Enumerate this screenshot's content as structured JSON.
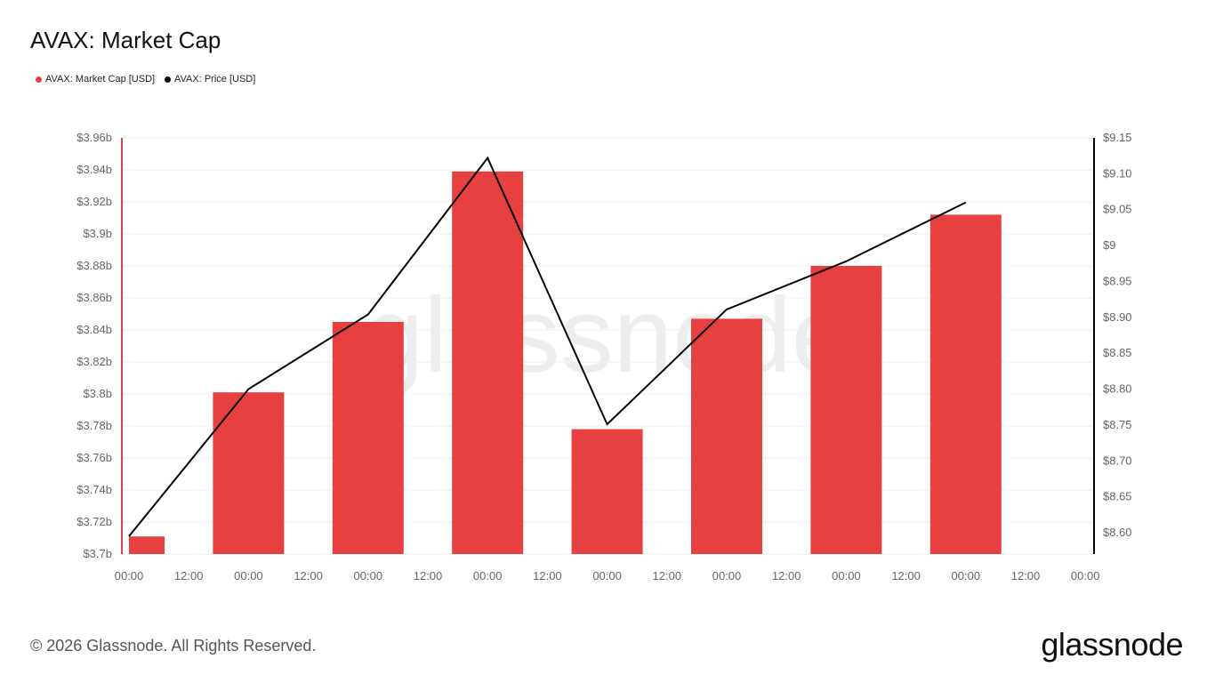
{
  "chart_data": {
    "type": "bar",
    "title": "AVAX: Market Cap",
    "x_tick_labels": [
      "00:00",
      "12:00",
      "00:00",
      "12:00",
      "00:00",
      "12:00",
      "00:00",
      "12:00",
      "00:00",
      "12:00",
      "00:00",
      "12:00",
      "00:00",
      "12:00",
      "00:00",
      "12:00",
      "00:00"
    ],
    "series": [
      {
        "name": "AVAX: Market Cap [USD]",
        "type": "bar",
        "axis": "left",
        "color": "#e64040",
        "x_index": [
          0,
          2,
          4,
          6,
          8,
          10,
          12,
          14
        ],
        "values": [
          3.711,
          3.801,
          3.845,
          3.939,
          3.778,
          3.847,
          3.88,
          3.912
        ]
      },
      {
        "name": "AVAX: Price [USD]",
        "type": "line",
        "axis": "right",
        "color": "#000000",
        "x_index": [
          0,
          2,
          4,
          6,
          8,
          10,
          12,
          14
        ],
        "values": [
          8.595,
          8.8,
          8.904,
          9.122,
          8.751,
          8.911,
          8.978,
          9.06
        ]
      }
    ],
    "y_left": {
      "unit": "b",
      "ylim": [
        3.7,
        3.96
      ],
      "tick_labels": [
        "$3.7b",
        "$3.72b",
        "$3.74b",
        "$3.76b",
        "$3.78b",
        "$3.8b",
        "$3.82b",
        "$3.84b",
        "$3.86b",
        "$3.88b",
        "$3.9b",
        "$3.92b",
        "$3.94b",
        "$3.96b"
      ]
    },
    "y_right": {
      "ylim": [
        8.56,
        9.15
      ],
      "ticks": [
        8.6,
        8.65,
        8.7,
        8.75,
        8.8,
        8.85,
        8.9,
        8.95,
        9.0,
        9.05,
        9.1,
        9.15
      ],
      "tick_labels": [
        "$8.60",
        "$8.65",
        "$8.70",
        "$8.75",
        "$8.80",
        "$8.85",
        "$8.90",
        "$8.95",
        "$9",
        "$9.05",
        "$9.10",
        "$9.15"
      ]
    },
    "grid": true,
    "legend_placement": "top-left",
    "watermark": "glassnode"
  },
  "footer": {
    "copyright": "© 2026 Glassnode. All Rights Reserved.",
    "logo": "glassnode"
  }
}
